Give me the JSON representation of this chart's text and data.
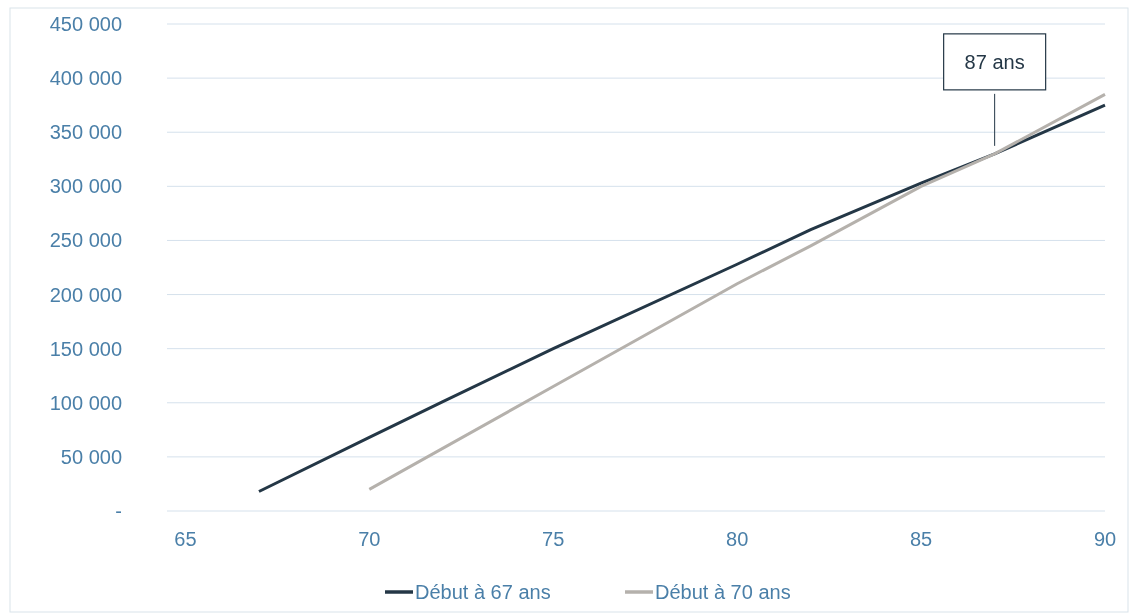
{
  "chart_data": {
    "type": "line",
    "x": [
      67,
      70,
      72,
      75,
      80,
      82,
      85,
      87,
      90
    ],
    "series": [
      {
        "name": "Début à 67 ans",
        "color": "#243746",
        "values": [
          18000,
          68000,
          101000,
          150000,
          228000,
          260000,
          303000,
          330000,
          375000
        ]
      },
      {
        "name": "Début à 70 ans",
        "color": "#b5b1ac",
        "x": [
          70,
          75,
          80,
          82,
          85,
          87,
          90
        ],
        "values": [
          20000,
          115000,
          210000,
          245000,
          300000,
          330000,
          385000
        ]
      }
    ],
    "xlim": [
      64.5,
      90
    ],
    "xticks": [
      65,
      70,
      75,
      80,
      85,
      90
    ],
    "ylim": [
      0,
      450000
    ],
    "yticks": [
      {
        "value": 0,
        "label": "-"
      },
      {
        "value": 50000,
        "label": "50 000"
      },
      {
        "value": 100000,
        "label": "100 000"
      },
      {
        "value": 150000,
        "label": "150 000"
      },
      {
        "value": 200000,
        "label": "200 000"
      },
      {
        "value": 250000,
        "label": "250 000"
      },
      {
        "value": 300000,
        "label": "300 000"
      },
      {
        "value": 350000,
        "label": "350 000"
      },
      {
        "value": 400000,
        "label": "400 000"
      },
      {
        "value": 450000,
        "label": "450 000"
      }
    ],
    "grid": "y",
    "legend": "bottom",
    "line_style": "solid",
    "annotations": [
      {
        "text": "87 ans",
        "x": 87,
        "y": 330000
      }
    ]
  }
}
